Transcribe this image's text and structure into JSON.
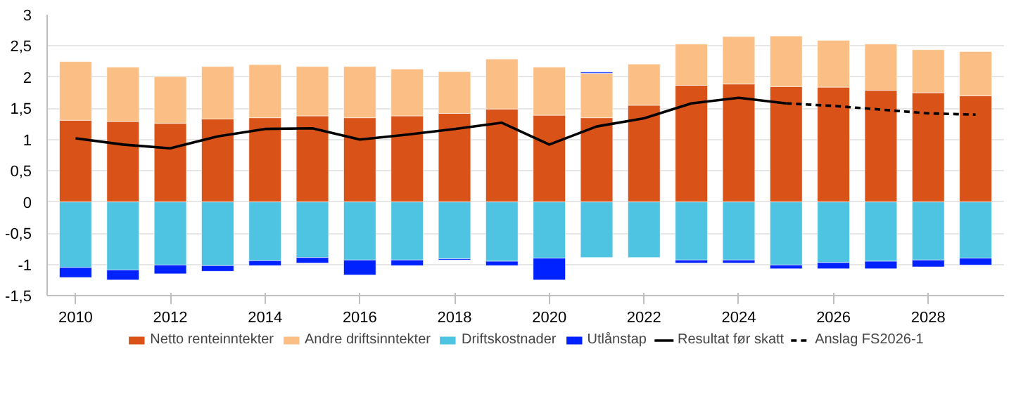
{
  "chart_data": {
    "type": "bar",
    "stacked": true,
    "x": [
      2010,
      2011,
      2012,
      2013,
      2014,
      2015,
      2016,
      2017,
      2018,
      2019,
      2020,
      2021,
      2022,
      2023,
      2024,
      2025,
      2026,
      2027,
      2028,
      2029
    ],
    "series": [
      {
        "name": "Netto renteinntekter",
        "color": "#d95319",
        "values": [
          1.31,
          1.29,
          1.26,
          1.33,
          1.35,
          1.38,
          1.35,
          1.38,
          1.42,
          1.49,
          1.39,
          1.35,
          1.55,
          1.87,
          1.89,
          1.85,
          1.84,
          1.79,
          1.75,
          1.7
        ]
      },
      {
        "name": "Andre driftsinntekter",
        "color": "#fbbf85",
        "values": [
          0.94,
          0.87,
          0.75,
          0.84,
          0.85,
          0.79,
          0.82,
          0.75,
          0.67,
          0.8,
          0.77,
          0.71,
          0.66,
          0.66,
          0.76,
          0.81,
          0.75,
          0.74,
          0.69,
          0.71
        ]
      },
      {
        "name": "Driftskostnader",
        "color": "#4ec3e2",
        "values": [
          -1.05,
          -1.09,
          -1.01,
          -1.02,
          -0.94,
          -0.89,
          -0.93,
          -0.93,
          -0.91,
          -0.95,
          -0.9,
          -0.89,
          -0.89,
          -0.93,
          -0.93,
          -1.01,
          -0.97,
          -0.95,
          -0.93,
          -0.9
        ]
      },
      {
        "name": "Utlånstap",
        "color": "#0022ff",
        "values": [
          -0.16,
          -0.16,
          -0.14,
          -0.09,
          -0.08,
          -0.09,
          -0.24,
          -0.09,
          -0.02,
          -0.07,
          -0.35,
          0.02,
          null,
          -0.05,
          -0.05,
          -0.06,
          -0.1,
          -0.12,
          -0.11,
          -0.11
        ]
      },
      {
        "name": "Resultat før skatt",
        "type": "line",
        "color": "#000000",
        "line_style": "solid",
        "x": [
          2010,
          2011,
          2012,
          2013,
          2014,
          2015,
          2016,
          2017,
          2018,
          2019,
          2020,
          2021,
          2022,
          2023,
          2024,
          2025
        ],
        "values": [
          1.02,
          0.92,
          0.86,
          1.05,
          1.17,
          1.18,
          1.0,
          1.08,
          1.17,
          1.27,
          0.92,
          1.21,
          1.34,
          1.58,
          1.67,
          1.58
        ]
      },
      {
        "name": "Anslag FS2026-1",
        "type": "line",
        "color": "#000000",
        "line_style": "dashed",
        "x": [
          2025,
          2026,
          2027,
          2028,
          2029
        ],
        "values": [
          1.58,
          1.54,
          1.48,
          1.42,
          1.4
        ]
      }
    ],
    "xlim": [
      2009.4,
      2029.6
    ],
    "xticks": [
      2010,
      2012,
      2014,
      2016,
      2018,
      2020,
      2022,
      2024,
      2026,
      2028
    ],
    "ylim": [
      -1.5,
      3
    ],
    "yticks": [
      {
        "value": -1.5,
        "label": "-1,5"
      },
      {
        "value": -1,
        "label": "-1"
      },
      {
        "value": -0.5,
        "label": "-0,5"
      },
      0,
      {
        "value": 0.5,
        "label": "0,5"
      },
      1,
      {
        "value": 1.5,
        "label": "1,5"
      },
      2,
      {
        "value": 2.5,
        "label": "2,5"
      },
      3
    ],
    "grid": "y",
    "legend": "bottom"
  }
}
